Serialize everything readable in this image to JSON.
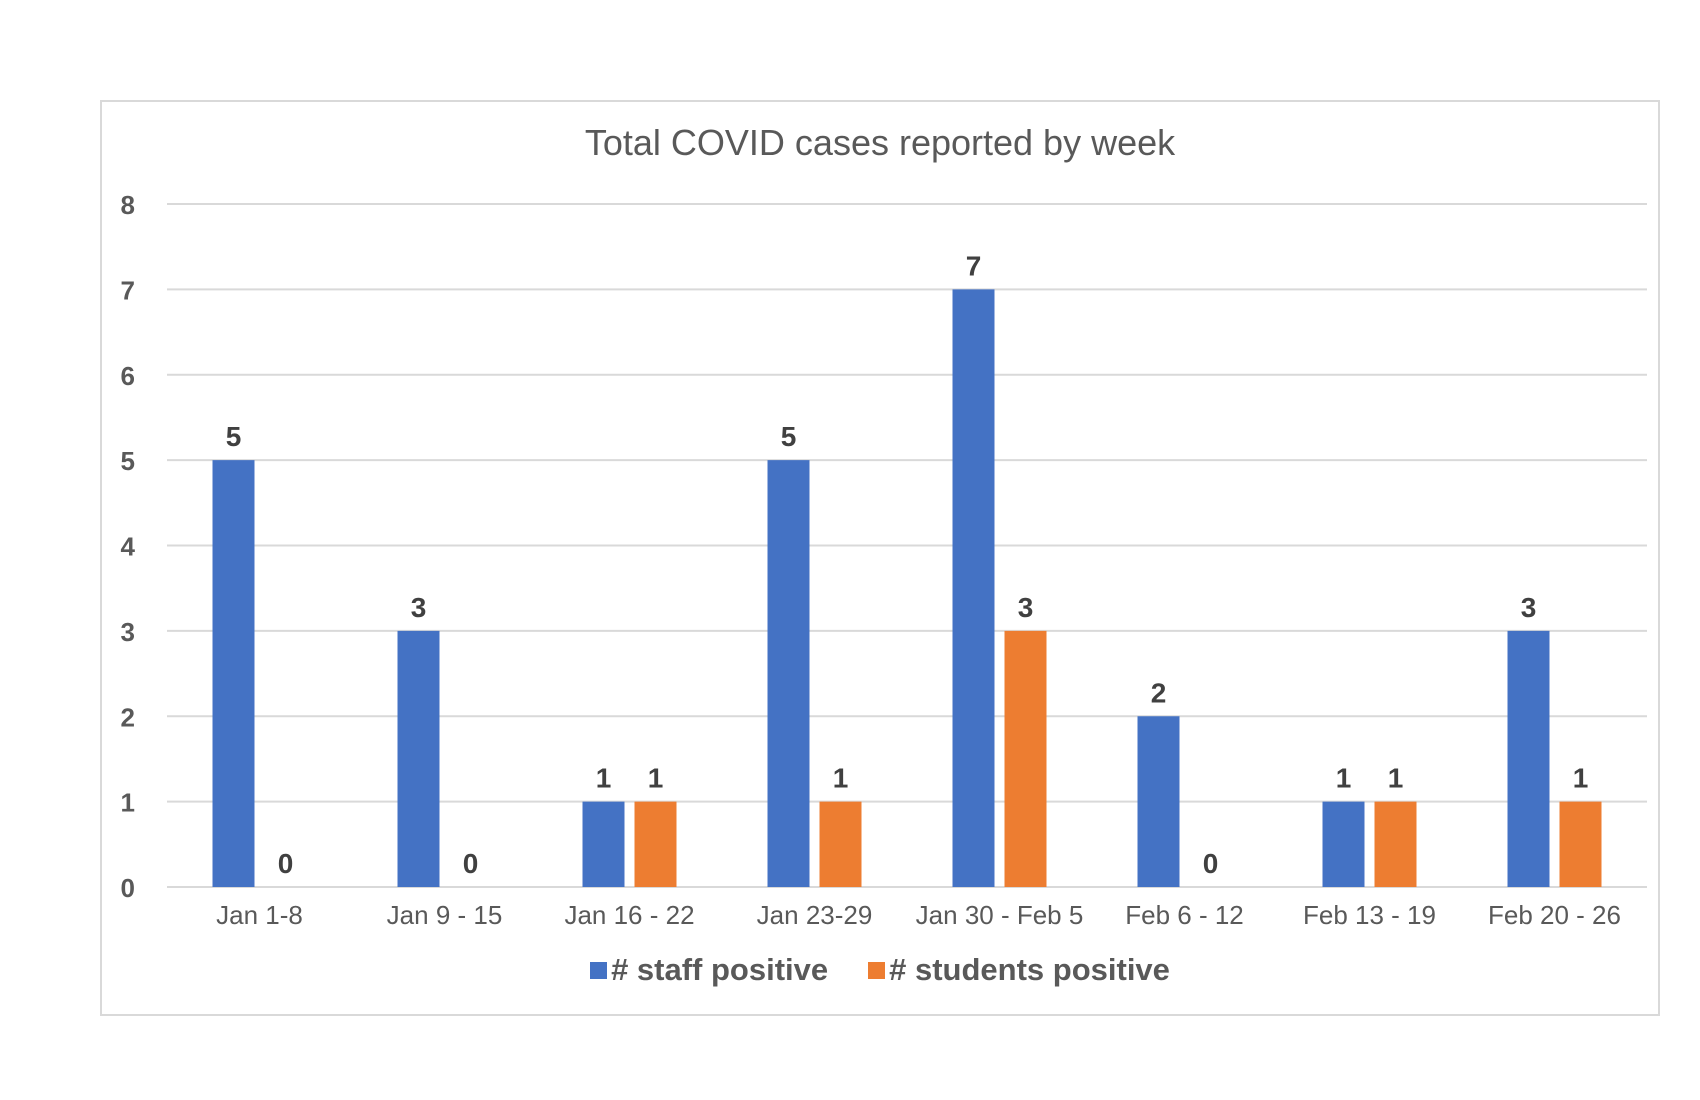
{
  "chart_data": {
    "type": "bar",
    "title": "Total COVID cases reported by week",
    "categories": [
      "Jan 1-8",
      "Jan 9 - 15",
      "Jan 16 - 22",
      "Jan 23-29",
      "Jan 30 - Feb 5",
      "Feb 6 - 12",
      "Feb 13 - 19",
      "Feb 20 - 26"
    ],
    "series": [
      {
        "name": "# staff positive",
        "values": [
          5,
          3,
          1,
          5,
          7,
          2,
          1,
          3
        ],
        "color": "#4472c4"
      },
      {
        "name": "# students positive",
        "values": [
          0,
          0,
          1,
          1,
          3,
          0,
          1,
          1
        ],
        "color": "#ed7d31"
      }
    ],
    "ylim": [
      0,
      8
    ],
    "yticks": [
      0,
      1,
      2,
      3,
      4,
      5,
      6,
      7,
      8
    ],
    "grid": true,
    "legend": "bottom",
    "data_labels": true
  }
}
